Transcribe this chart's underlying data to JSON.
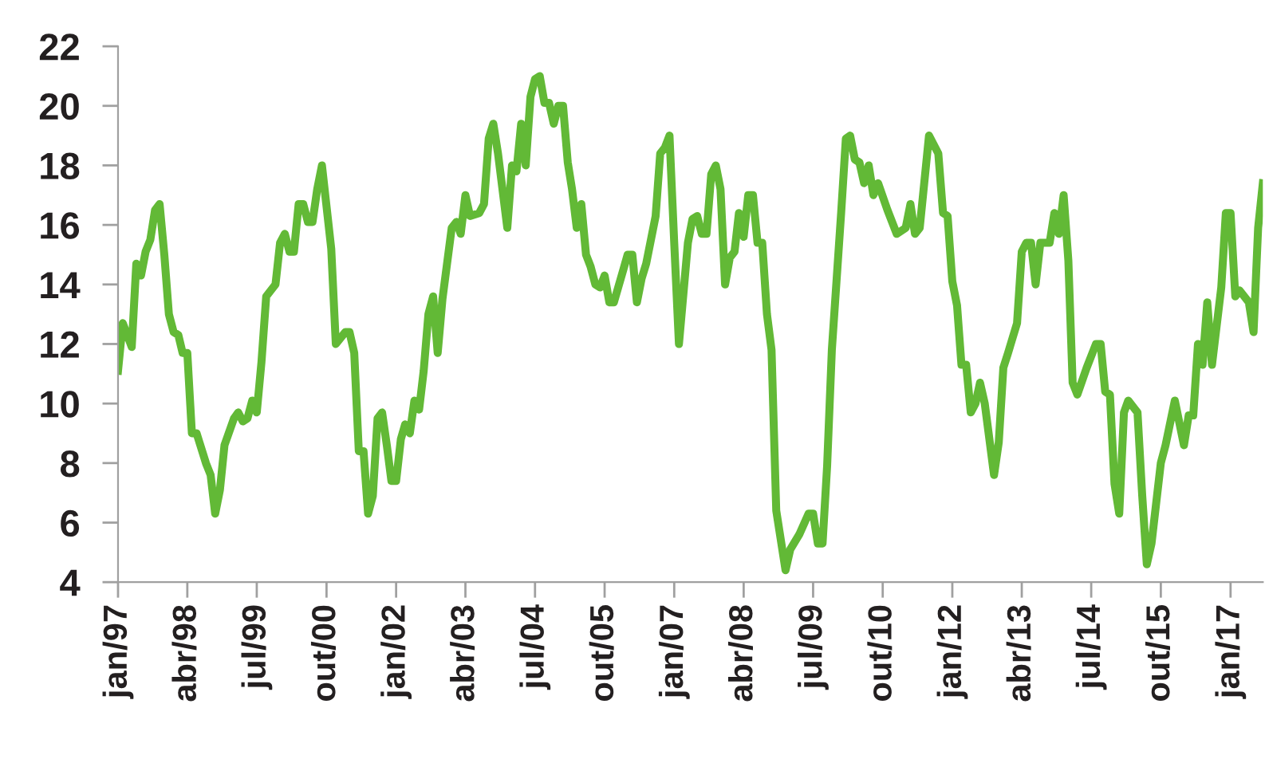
{
  "chart_data": {
    "type": "line",
    "x": [
      "1997-01",
      "1997-02",
      "1997-04",
      "1997-05",
      "1997-06",
      "1997-07",
      "1997-08",
      "1997-09",
      "1997-10",
      "1997-11",
      "1997-12",
      "1998-01",
      "1998-02",
      "1998-03",
      "1998-04",
      "1998-05",
      "1998-06",
      "1998-08",
      "1998-09",
      "1998-10",
      "1998-11",
      "1998-12",
      "1999-02",
      "1999-03",
      "1999-04",
      "1999-05",
      "1999-06",
      "1999-07",
      "1999-08",
      "1999-09",
      "1999-11",
      "1999-12",
      "2000-01",
      "2000-02",
      "2000-03",
      "2000-04",
      "2000-05",
      "2000-06",
      "2000-07",
      "2000-08",
      "2000-09",
      "2000-11",
      "2000-12",
      "2001-02",
      "2001-03",
      "2001-04",
      "2001-05",
      "2001-06",
      "2001-07",
      "2001-08",
      "2001-09",
      "2001-10",
      "2001-11",
      "2001-12",
      "2002-01",
      "2002-02",
      "2002-03",
      "2002-04",
      "2002-05",
      "2002-06",
      "2002-07",
      "2002-08",
      "2002-09",
      "2002-10",
      "2002-11",
      "2003-01",
      "2003-02",
      "2003-03",
      "2003-04",
      "2003-05",
      "2003-07",
      "2003-08",
      "2003-09",
      "2003-10",
      "2003-11",
      "2004-01",
      "2004-02",
      "2004-03",
      "2004-04",
      "2004-05",
      "2004-06",
      "2004-07",
      "2004-08",
      "2004-09",
      "2004-10",
      "2004-11",
      "2004-12",
      "2005-01",
      "2005-02",
      "2005-03",
      "2005-04",
      "2005-05",
      "2005-06",
      "2005-07",
      "2005-08",
      "2005-09",
      "2005-10",
      "2005-11",
      "2005-12",
      "2006-02",
      "2006-03",
      "2006-04",
      "2006-05",
      "2006-06",
      "2006-07",
      "2006-09",
      "2006-10",
      "2006-11",
      "2006-12",
      "2007-01",
      "2007-02",
      "2007-04",
      "2007-05",
      "2007-06",
      "2007-07",
      "2007-08",
      "2007-09",
      "2007-10",
      "2007-11",
      "2007-12",
      "2008-01",
      "2008-02",
      "2008-03",
      "2008-04",
      "2008-05",
      "2008-06",
      "2008-07",
      "2008-08",
      "2008-09",
      "2008-10",
      "2008-11",
      "2009-01",
      "2009-02",
      "2009-04",
      "2009-06",
      "2009-07",
      "2009-08",
      "2009-09",
      "2009-10",
      "2009-11",
      "2010-01",
      "2010-02",
      "2010-03",
      "2010-04",
      "2010-05",
      "2010-06",
      "2010-07",
      "2010-08",
      "2010-09",
      "2010-11",
      "2011-01",
      "2011-03",
      "2011-04",
      "2011-05",
      "2011-06",
      "2011-08",
      "2011-10",
      "2011-11",
      "2011-12",
      "2012-01",
      "2012-02",
      "2012-03",
      "2012-04",
      "2012-05",
      "2012-06",
      "2012-07",
      "2012-08",
      "2012-10",
      "2012-11",
      "2012-12",
      "2013-01",
      "2013-03",
      "2013-04",
      "2013-05",
      "2013-06",
      "2013-07",
      "2013-08",
      "2013-10",
      "2013-11",
      "2013-12",
      "2014-01",
      "2014-02",
      "2014-03",
      "2014-04",
      "2014-06",
      "2014-08",
      "2014-09",
      "2014-10",
      "2014-11",
      "2014-12",
      "2015-01",
      "2015-02",
      "2015-03",
      "2015-05",
      "2015-06",
      "2015-07",
      "2015-08",
      "2015-10",
      "2015-11",
      "2016-01",
      "2016-03",
      "2016-04",
      "2016-05",
      "2016-06",
      "2016-07",
      "2016-08",
      "2016-09",
      "2016-11",
      "2016-12",
      "2017-01",
      "2017-02",
      "2017-03",
      "2017-05",
      "2017-06",
      "2017-07",
      "2017-08"
    ],
    "series": [
      {
        "color": "#62b936",
        "values": [
          11.1,
          12.7,
          11.9,
          14.7,
          14.3,
          15.1,
          15.5,
          16.5,
          16.7,
          15.0,
          13.0,
          12.4,
          12.3,
          11.7,
          11.7,
          9.0,
          9.0,
          8.0,
          7.6,
          6.3,
          7.1,
          8.6,
          9.5,
          9.7,
          9.4,
          9.5,
          10.1,
          9.7,
          11.4,
          13.6,
          14.0,
          15.4,
          15.7,
          15.1,
          15.1,
          16.7,
          16.7,
          16.1,
          16.1,
          17.2,
          18.0,
          15.2,
          12.0,
          12.4,
          12.4,
          11.7,
          8.4,
          8.4,
          6.3,
          6.9,
          9.5,
          9.7,
          8.6,
          7.4,
          7.4,
          8.8,
          9.3,
          9.0,
          10.1,
          9.8,
          11.1,
          13.0,
          13.6,
          11.7,
          13.5,
          15.9,
          16.1,
          15.7,
          17.0,
          16.3,
          16.4,
          16.7,
          18.9,
          19.4,
          18.4,
          15.9,
          18.0,
          17.8,
          19.4,
          18.0,
          20.3,
          20.9,
          21.0,
          20.1,
          20.1,
          19.4,
          20.0,
          20.0,
          18.1,
          17.2,
          15.9,
          16.7,
          15.0,
          14.6,
          14.0,
          13.9,
          14.3,
          13.4,
          13.4,
          14.5,
          15.0,
          15.0,
          13.4,
          14.2,
          14.7,
          16.3,
          18.4,
          18.6,
          19.0,
          15.4,
          12.0,
          15.4,
          16.2,
          16.3,
          15.7,
          15.7,
          17.7,
          18.0,
          17.2,
          14.0,
          14.9,
          15.1,
          16.4,
          15.6,
          17.0,
          17.0,
          15.4,
          15.4,
          13.0,
          11.8,
          6.4,
          4.4,
          5.1,
          5.6,
          6.3,
          6.3,
          5.3,
          5.3,
          7.9,
          11.8,
          16.4,
          18.9,
          19.0,
          18.2,
          18.1,
          17.4,
          18.0,
          17.0,
          17.4,
          16.5,
          15.7,
          15.9,
          16.7,
          15.7,
          15.9,
          19.0,
          18.4,
          16.4,
          16.3,
          14.1,
          13.3,
          11.3,
          11.3,
          9.7,
          10.0,
          10.7,
          10.0,
          7.6,
          8.7,
          11.2,
          11.7,
          12.7,
          15.1,
          15.4,
          15.4,
          14.0,
          15.4,
          15.4,
          16.4,
          15.7,
          17.0,
          14.8,
          10.7,
          10.3,
          11.2,
          12.0,
          12.0,
          10.4,
          10.3,
          7.3,
          6.3,
          9.7,
          10.1,
          9.7,
          6.9,
          4.6,
          5.3,
          8.0,
          8.6,
          10.1,
          8.6,
          9.6,
          9.6,
          12.0,
          11.3,
          13.4,
          11.3,
          13.9,
          16.4,
          16.4,
          13.6,
          13.8,
          13.4,
          12.4,
          15.9,
          17.4
        ]
      }
    ],
    "xlim": [
      "1997-01",
      "2017-08"
    ],
    "xticks": [
      {
        "value": "1997-01",
        "label": "jan/97"
      },
      {
        "value": "1998-04",
        "label": "abr/98"
      },
      {
        "value": "1999-07",
        "label": "jul/99"
      },
      {
        "value": "2000-10",
        "label": "out/00"
      },
      {
        "value": "2002-01",
        "label": "jan/02"
      },
      {
        "value": "2003-04",
        "label": "abr/03"
      },
      {
        "value": "2004-07",
        "label": "jul/04"
      },
      {
        "value": "2005-10",
        "label": "out/05"
      },
      {
        "value": "2007-01",
        "label": "jan/07"
      },
      {
        "value": "2008-04",
        "label": "abr/08"
      },
      {
        "value": "2009-07",
        "label": "jul/09"
      },
      {
        "value": "2010-10",
        "label": "out/10"
      },
      {
        "value": "2012-01",
        "label": "jan/12"
      },
      {
        "value": "2013-04",
        "label": "abr/13"
      },
      {
        "value": "2014-07",
        "label": "jul/14"
      },
      {
        "value": "2015-10",
        "label": "out/15"
      },
      {
        "value": "2017-01",
        "label": "jan/17"
      }
    ],
    "ylim": [
      4,
      22
    ],
    "yticks": [
      4,
      6,
      8,
      10,
      12,
      14,
      16,
      18,
      20,
      22
    ],
    "grid": false,
    "marker": "none",
    "line_style": "solid"
  }
}
